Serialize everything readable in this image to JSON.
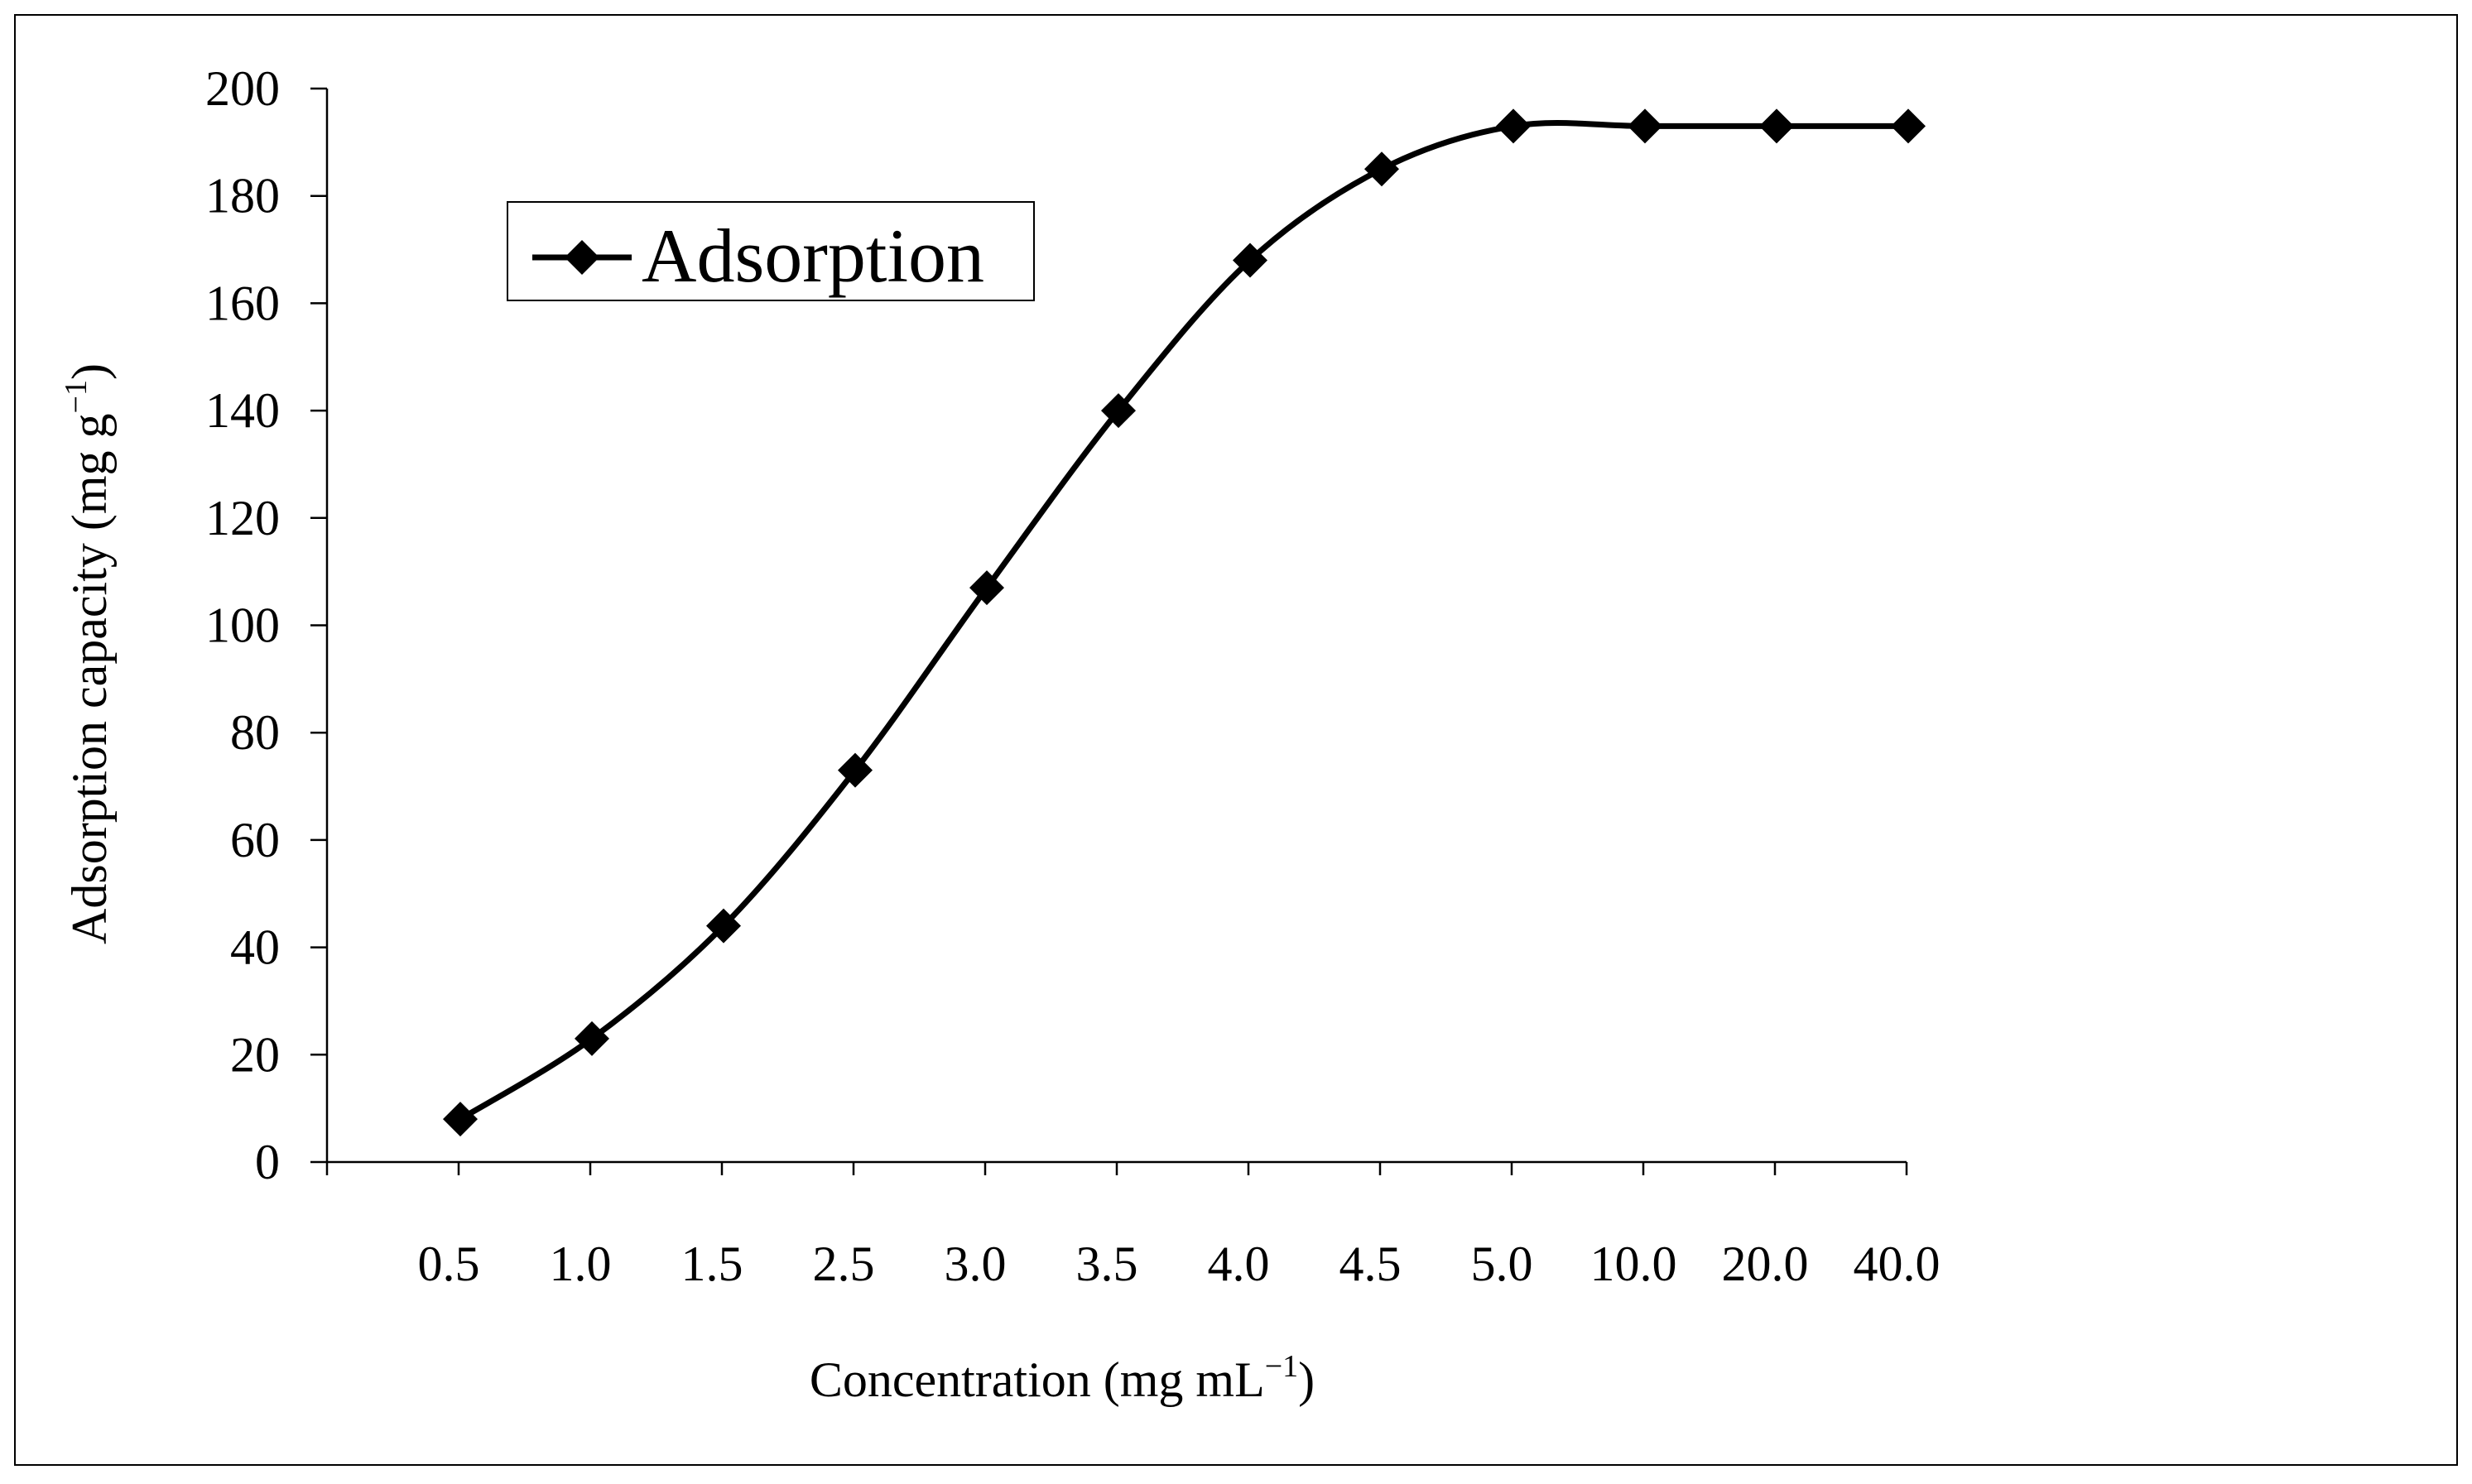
{
  "chart_data": {
    "type": "line",
    "title": "",
    "xlabel": "Concentration (mg mL",
    "xlabel_superscript": "−1",
    "xlabel_suffix": ")",
    "ylabel": "Adsorption capacity (mg g",
    "ylabel_superscript": "−1",
    "ylabel_suffix": ")",
    "categories": [
      "0.5",
      "1.0",
      "1.5",
      "2.5",
      "3.0",
      "3.5",
      "4.0",
      "4.5",
      "5.0",
      "10.0",
      "20.0",
      "40.0"
    ],
    "y_ticks": [
      "0",
      "20",
      "40",
      "60",
      "80",
      "100",
      "120",
      "140",
      "160",
      "180",
      "200"
    ],
    "ylim": [
      0,
      200
    ],
    "grid": false,
    "legend_position": "top-left",
    "marker": "diamond",
    "series": [
      {
        "name": "Adsorption",
        "values": [
          8,
          23,
          44,
          73,
          107,
          140,
          168,
          185,
          193,
          193,
          193,
          193
        ]
      }
    ]
  },
  "colors": {
    "line": "#000000",
    "marker": "#000000",
    "frame": "#000000",
    "background": "#ffffff"
  }
}
